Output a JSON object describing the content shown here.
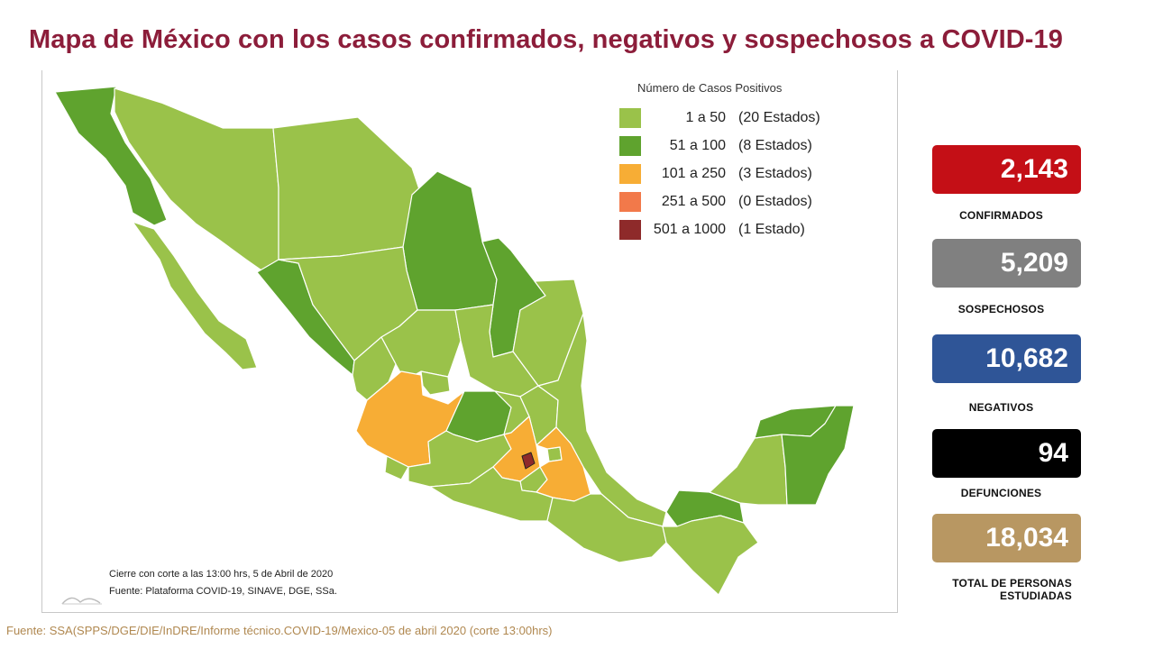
{
  "title": "Mapa de México con los casos confirmados, negativos y sospechosos a COVID-19",
  "legend": {
    "title": "Número de Casos Positivos",
    "items": [
      {
        "range": "1 a 50",
        "count": "(20 Estados)",
        "color": "#9ac24a"
      },
      {
        "range": "51 a 100",
        "count": "(8 Estados)",
        "color": "#5fa32e"
      },
      {
        "range": "101 a 250",
        "count": "(3 Estados)",
        "color": "#f7ad35"
      },
      {
        "range": "251 a 500",
        "count": "(0 Estados)",
        "color": "#f2794a"
      },
      {
        "range": "501 a 1000",
        "count": "(1 Estado)",
        "color": "#8e2a2a"
      }
    ]
  },
  "notes": {
    "cutoff": "Cierre con corte a las 13:00 hrs, 5 de Abril de 2020",
    "source": "Fuente: Plataforma COVID-19, SINAVE, DGE, SSa."
  },
  "stats": [
    {
      "value": "2,143",
      "label": "CONFIRMADOS",
      "color": "#c40f16"
    },
    {
      "value": "5,209",
      "label": "SOSPECHOSOS",
      "color": "#808080"
    },
    {
      "value": "10,682",
      "label": "NEGATIVOS",
      "color": "#2f5597"
    },
    {
      "value": "94",
      "label": "DEFUNCIONES",
      "color": "#000000"
    },
    {
      "value": "18,034",
      "label": "TOTAL DE PERSONAS ESTUDIADAS",
      "color": "#b89762"
    }
  ],
  "footer_source": "Fuente: SSA(SPPS/DGE/DIE/InDRE/Informe técnico.COVID-19/Mexico-05 de abril 2020 (corte 13:00hrs)"
}
